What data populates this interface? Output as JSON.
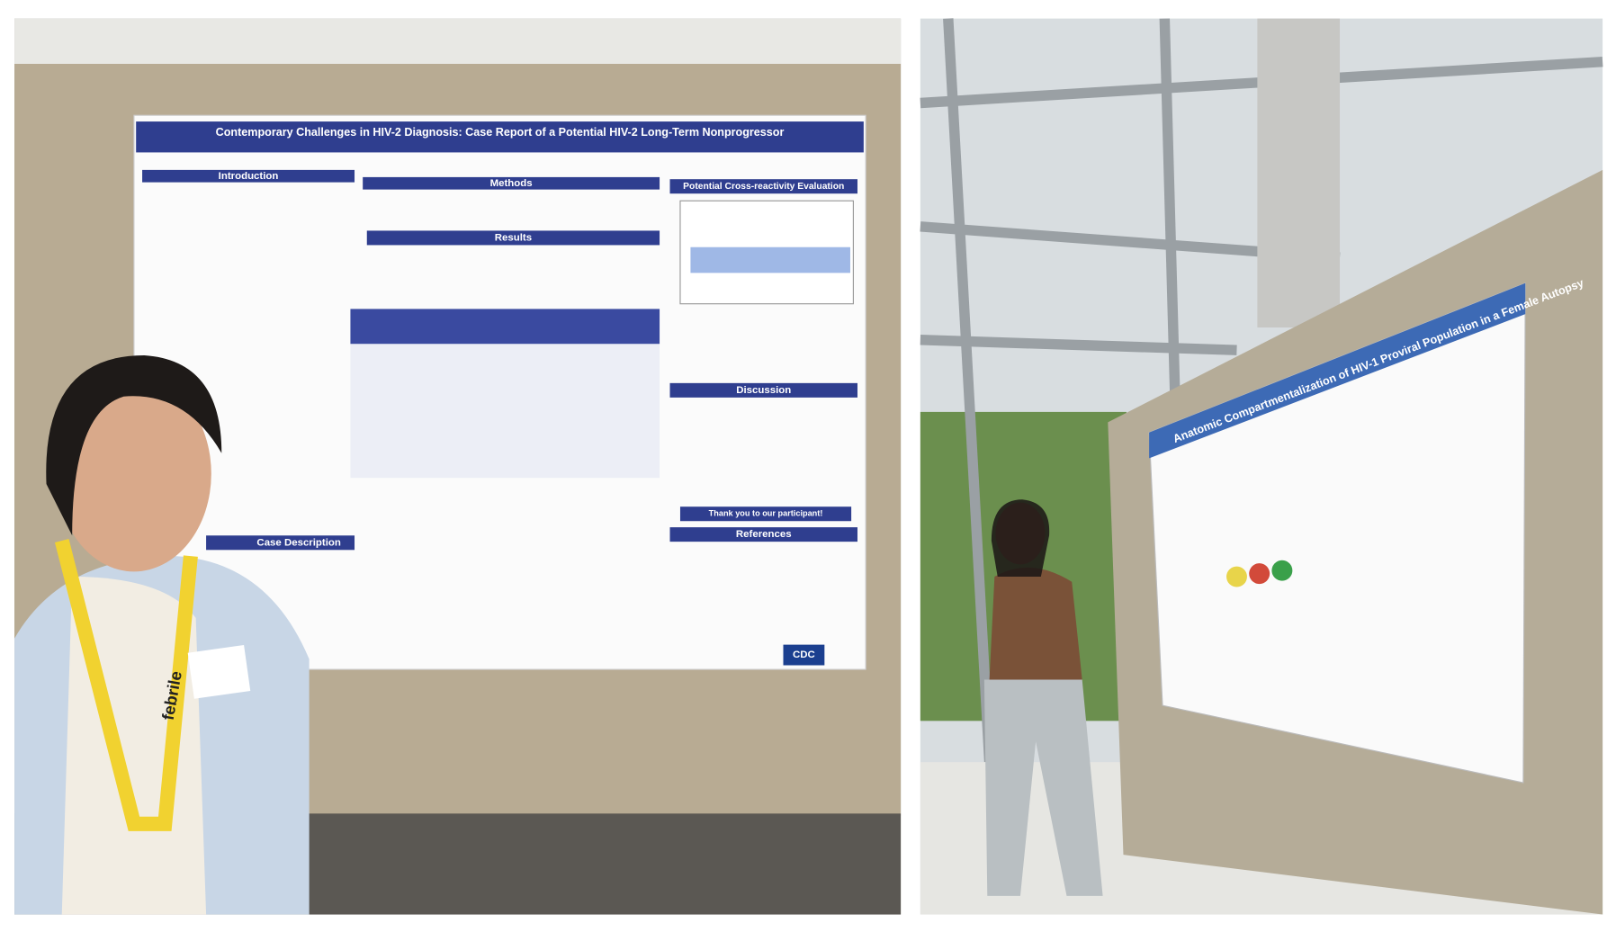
{
  "photos": [
    {
      "poster": {
        "title": "Contemporary Challenges in HIV-2 Diagnosis: Case Report of a Potential HIV-2 Long-Term Nonprogressor",
        "sections": [
          "Introduction",
          "Methods",
          "Results",
          "Potential Cross-reactivity Evaluation",
          "Discussion",
          "References",
          "Case Description"
        ],
        "thanks": "Thank you to our participant!",
        "logo": "CDC"
      },
      "lanyard": "febrile"
    },
    {
      "poster": {
        "title": "Anatomic Compartmentalization of HIV-1 Proviral Population in a Female Autopsy"
      }
    }
  ]
}
